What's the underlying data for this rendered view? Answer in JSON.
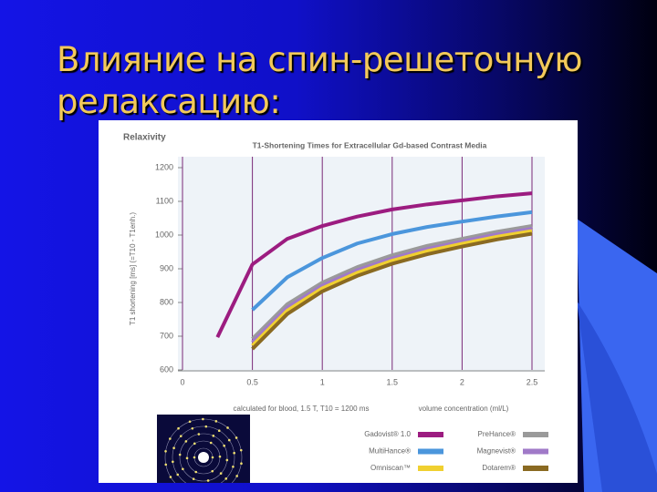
{
  "slide_title_lines": [
    "Влияние на спин-решеточную",
    "релаксацию:"
  ],
  "chart_data": {
    "type": "line",
    "panel_label": "Relaxivity",
    "title": "T1-Shortening Times for Extracellular Gd-based Contrast Media",
    "y_label": "T1 shortening [ms] (=T10 - T1enh.)",
    "x_label": "volume concentration (ml/L)",
    "note": "calculated for blood, 1.5 T, T10 = 1200 ms",
    "x": [
      0.25,
      0.5,
      0.75,
      1,
      1.25,
      1.5,
      1.75,
      2,
      2.25,
      2.5
    ],
    "xlim": [
      0,
      2.5
    ],
    "xticks": [
      0,
      0.5,
      1,
      1.5,
      2,
      2.5
    ],
    "ylim": [
      600,
      1200
    ],
    "yticks": [
      600,
      700,
      800,
      900,
      1000,
      1100,
      1200
    ],
    "grid": true,
    "series": [
      {
        "name": "Gadovist® 1.0",
        "color": "#9c1c80",
        "values": [
          697,
          913,
          989,
          1027,
          1055,
          1076,
          1091,
          1103,
          1115,
          1124
        ]
      },
      {
        "name": "PreHance®",
        "color": "#9a9a9a",
        "values": [
          null,
          692,
          795,
          859,
          905,
          940,
          968,
          989,
          1010,
          1027
        ]
      },
      {
        "name": "MultiHance®",
        "color": "#4b96dc",
        "values": [
          null,
          778,
          875,
          932,
          975,
          1003,
          1024,
          1040,
          1055,
          1068
        ]
      },
      {
        "name": "Magnevist®",
        "color": "#a07ac8",
        "values": [
          null,
          682,
          785,
          850,
          896,
          931,
          959,
          981,
          1002,
          1019
        ]
      },
      {
        "name": "Omniscan™",
        "color": "#f0d030",
        "values": [
          null,
          672,
          776,
          842,
          888,
          924,
          952,
          974,
          995,
          1012
        ]
      },
      {
        "name": "Dotarem®",
        "color": "#8a6a22",
        "values": [
          null,
          662,
          766,
          833,
          879,
          915,
          943,
          966,
          987,
          1004
        ]
      }
    ]
  }
}
